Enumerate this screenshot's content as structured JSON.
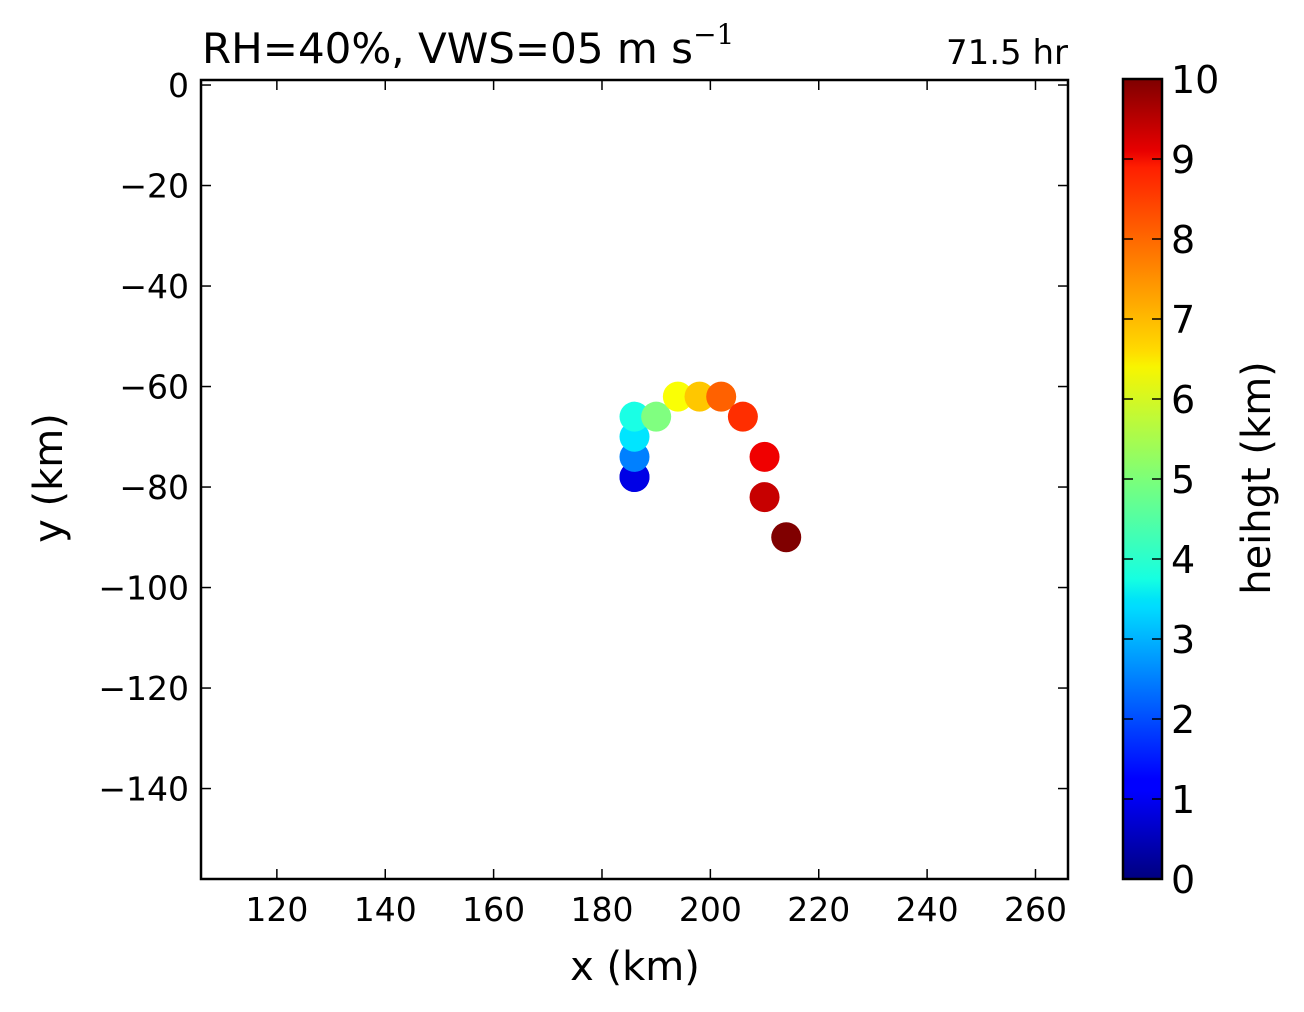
{
  "chart_data": {
    "type": "scatter",
    "title": "RH=40%, VWS=05 m s",
    "title_superscript": "−1",
    "annotation": "71.5 hr",
    "annotation_color": "#0000ff",
    "xlabel": "x (km)",
    "ylabel": "y (km)",
    "xlim": [
      106,
      266
    ],
    "ylim": [
      -158,
      1
    ],
    "xticks": [
      120,
      140,
      160,
      180,
      200,
      220,
      240,
      260
    ],
    "xtick_labels": [
      "120",
      "140",
      "160",
      "180",
      "200",
      "220",
      "240",
      "260"
    ],
    "yticks": [
      0,
      -20,
      -40,
      -60,
      -80,
      -100,
      -120,
      -140
    ],
    "ytick_labels": [
      "0",
      "−20",
      "−40",
      "−60",
      "−80",
      "−100",
      "−120",
      "−140"
    ],
    "grid": false,
    "colormap": "jet",
    "colorbar": {
      "label": "heihgt (km)",
      "range": [
        0,
        10
      ],
      "ticks": [
        0,
        1,
        2,
        3,
        4,
        5,
        6,
        7,
        8,
        9,
        10
      ],
      "tick_labels": [
        "0",
        "1",
        "2",
        "3",
        "4",
        "5",
        "6",
        "7",
        "8",
        "9",
        "10"
      ]
    },
    "points": [
      {
        "x": 186,
        "y": -78,
        "height": 0.5
      },
      {
        "x": 186,
        "y": -78,
        "height": 1.0
      },
      {
        "x": 186,
        "y": -74,
        "height": 2.5
      },
      {
        "x": 186,
        "y": -70,
        "height": 3.5
      },
      {
        "x": 186,
        "y": -66,
        "height": 4.0
      },
      {
        "x": 190,
        "y": -66,
        "height": 5.0
      },
      {
        "x": 194,
        "y": -62,
        "height": 6.2
      },
      {
        "x": 198,
        "y": -62,
        "height": 6.8
      },
      {
        "x": 202,
        "y": -62,
        "height": 7.8
      },
      {
        "x": 206,
        "y": -66,
        "height": 8.3
      },
      {
        "x": 210,
        "y": -74,
        "height": 8.9
      },
      {
        "x": 210,
        "y": -82,
        "height": 9.3
      },
      {
        "x": 214,
        "y": -90,
        "height": 10.0
      }
    ]
  }
}
